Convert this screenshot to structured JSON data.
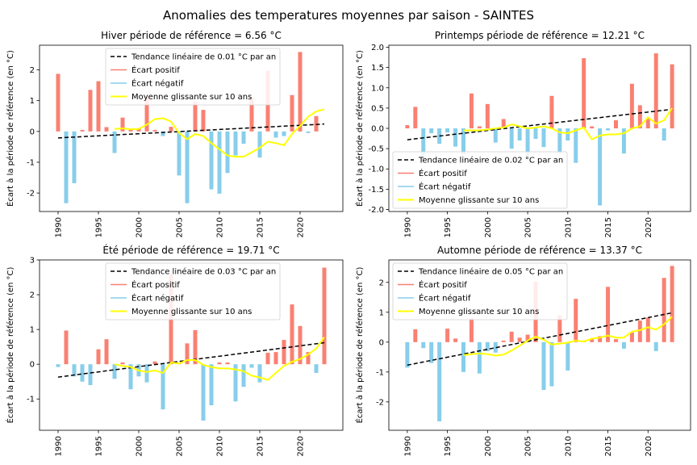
{
  "figure": {
    "title": "Anomalies des temperatures moyennes par saison - SAINTES"
  },
  "legend_labels": {
    "trend_prefix": "Tendance linéaire de",
    "trend_suffix": "°C par an",
    "positive": "Écart positif",
    "negative": "Écart négatif",
    "moving": "Moyenne glissante sur 10 ans"
  },
  "colors": {
    "positive": "#fa8072",
    "negative": "#87ceeb",
    "moving": "#ffff00",
    "trend": "#000000"
  },
  "chart_data": [
    {
      "type": "bar",
      "title": "Hiver période de référence = 6.56 °C",
      "ylabel": "Écart à la période de référence (en °C)",
      "trend_label": "Tendance linéaire de 0.01 °C par an",
      "legend_position": "top-center",
      "xlim": [
        1987.7,
        2025.3
      ],
      "ylim": [
        -2.6,
        2.8
      ],
      "xticks": [
        1990,
        1995,
        2000,
        2005,
        2010,
        2015,
        2020
      ],
      "yticks": [
        -2,
        -1,
        0,
        1,
        2
      ],
      "x": [
        1990,
        1991,
        1992,
        1993,
        1994,
        1995,
        1996,
        1997,
        1998,
        1999,
        2000,
        2001,
        2002,
        2003,
        2004,
        2005,
        2006,
        2007,
        2008,
        2009,
        2010,
        2011,
        2012,
        2013,
        2014,
        2015,
        2016,
        2017,
        2018,
        2019,
        2020,
        2021,
        2022,
        2023
      ],
      "values": [
        1.87,
        -2.33,
        -1.68,
        0.05,
        1.35,
        1.63,
        0.14,
        -0.7,
        0.45,
        0.05,
        0.1,
        1.15,
        0.05,
        -0.15,
        0.15,
        -1.43,
        -2.33,
        0.96,
        0.7,
        -1.88,
        -2.02,
        -1.35,
        -0.78,
        -0.4,
        1.1,
        -0.85,
        1.97,
        -0.2,
        -0.15,
        1.18,
        2.58,
        -0.05,
        0.5,
        null
      ],
      "trend": {
        "start": [
          1990,
          -0.21
        ],
        "end": [
          2023,
          0.24
        ]
      },
      "moving_average": {
        "x": [
          1997,
          1998,
          1999,
          2000,
          2001,
          2002,
          2003,
          2004,
          2005,
          2006,
          2007,
          2008,
          2009,
          2010,
          2011,
          2012,
          2013,
          2014,
          2015,
          2016,
          2017,
          2018,
          2019,
          2020,
          2021,
          2022,
          2023
        ],
        "values": [
          0.08,
          0.1,
          0.07,
          0.08,
          0.22,
          0.4,
          0.43,
          0.32,
          -0.05,
          -0.25,
          -0.08,
          -0.15,
          -0.38,
          -0.58,
          -0.78,
          -0.82,
          -0.82,
          -0.68,
          -0.53,
          -0.33,
          -0.38,
          -0.45,
          -0.08,
          0.18,
          0.48,
          0.65,
          0.72
        ]
      }
    },
    {
      "type": "bar",
      "title": "Printemps période de référence = 12.21 °C",
      "ylabel": "Écart à la période de référence (en °C)",
      "trend_label": "Tendance linéaire de 0.02 °C par an",
      "legend_position": "bottom-left",
      "xlim": [
        1987.7,
        2025.3
      ],
      "ylim": [
        -2.05,
        2.05
      ],
      "xticks": [
        1990,
        1995,
        2000,
        2005,
        2010,
        2015,
        2020
      ],
      "yticks": [
        -2.0,
        -1.5,
        -1.0,
        -0.5,
        0.0,
        0.5,
        1.0,
        1.5,
        2.0
      ],
      "x": [
        1990,
        1991,
        1992,
        1993,
        1994,
        1995,
        1996,
        1997,
        1998,
        1999,
        2000,
        2001,
        2002,
        2003,
        2004,
        2005,
        2006,
        2007,
        2008,
        2009,
        2010,
        2011,
        2012,
        2013,
        2014,
        2015,
        2016,
        2017,
        2018,
        2019,
        2020,
        2021,
        2022,
        2023
      ],
      "values": [
        0.08,
        0.53,
        -0.67,
        -0.12,
        -0.38,
        -0.1,
        -0.45,
        -0.65,
        0.86,
        0.05,
        0.6,
        -0.35,
        0.23,
        -0.5,
        -0.3,
        -0.68,
        -0.26,
        -0.46,
        0.8,
        -0.62,
        -0.3,
        -0.85,
        1.73,
        0.05,
        -1.9,
        -0.05,
        0.2,
        -0.62,
        1.1,
        0.57,
        0.25,
        1.85,
        -0.3,
        1.58
      ],
      "trend": {
        "start": [
          1990,
          -0.28
        ],
        "end": [
          2023,
          0.47
        ]
      },
      "moving_average": {
        "x": [
          1997,
          1998,
          1999,
          2000,
          2001,
          2002,
          2003,
          2004,
          2005,
          2006,
          2007,
          2008,
          2009,
          2010,
          2011,
          2012,
          2013,
          2014,
          2015,
          2016,
          2017,
          2018,
          2019,
          2020,
          2021,
          2022,
          2023
        ],
        "values": [
          -0.05,
          -0.05,
          -0.05,
          -0.03,
          0.0,
          0.02,
          0.1,
          0.05,
          0.0,
          0.02,
          0.05,
          0.0,
          -0.1,
          -0.12,
          -0.05,
          0.02,
          -0.27,
          -0.18,
          -0.15,
          -0.15,
          -0.12,
          0.0,
          0.05,
          0.27,
          0.12,
          0.2,
          0.5
        ]
      }
    },
    {
      "type": "bar",
      "title": "Été période de référence = 19.71 °C",
      "ylabel": "Écart à la période de référence (en °C)",
      "trend_label": "Tendance linéaire de 0.03 °C par an",
      "legend_position": "top-center",
      "xlim": [
        1987.7,
        2025.3
      ],
      "ylim": [
        -1.9,
        3.0
      ],
      "xticks": [
        1990,
        1995,
        2000,
        2005,
        2010,
        2015,
        2020
      ],
      "yticks": [
        -1,
        0,
        1,
        2,
        3
      ],
      "x": [
        1990,
        1991,
        1992,
        1993,
        1994,
        1995,
        1996,
        1997,
        1998,
        1999,
        2000,
        2001,
        2002,
        2003,
        2004,
        2005,
        2006,
        2007,
        2008,
        2009,
        2010,
        2011,
        2012,
        2013,
        2014,
        2015,
        2016,
        2017,
        2018,
        2019,
        2020,
        2021,
        2022,
        2023
      ],
      "values": [
        -0.08,
        0.97,
        -0.35,
        -0.5,
        -0.6,
        0.43,
        0.72,
        -0.42,
        0.05,
        -0.72,
        -0.35,
        -0.52,
        0.08,
        -1.3,
        2.58,
        0.02,
        0.6,
        0.98,
        -1.62,
        -1.18,
        0.05,
        0.05,
        -1.07,
        -0.65,
        -0.1,
        -0.52,
        0.33,
        0.35,
        0.7,
        1.72,
        1.1,
        0.35,
        -0.25,
        2.78
      ],
      "trend": {
        "start": [
          1990,
          -0.37
        ],
        "end": [
          2023,
          0.62
        ]
      },
      "moving_average": {
        "x": [
          1997,
          1998,
          1999,
          2000,
          2001,
          2002,
          2003,
          2004,
          2005,
          2006,
          2007,
          2008,
          2009,
          2010,
          2011,
          2012,
          2013,
          2014,
          2015,
          2016,
          2017,
          2018,
          2019,
          2020,
          2021,
          2022,
          2023
        ],
        "values": [
          0.0,
          -0.05,
          -0.08,
          -0.18,
          -0.22,
          -0.18,
          -0.25,
          0.05,
          0.02,
          0.12,
          0.12,
          -0.02,
          -0.08,
          -0.12,
          -0.12,
          -0.15,
          -0.2,
          -0.33,
          -0.38,
          -0.45,
          -0.25,
          -0.05,
          0.07,
          0.15,
          0.28,
          0.45,
          0.78
        ]
      }
    },
    {
      "type": "bar",
      "title": "Automne période de référence = 13.37 °C",
      "ylabel": "Écart à la période de référence (en °C)",
      "trend_label": "Tendance linéaire de 0.05 °C par an",
      "legend_position": "top-left",
      "xlim": [
        1987.7,
        2025.3
      ],
      "ylim": [
        -2.95,
        2.75
      ],
      "xticks": [
        1990,
        1995,
        2000,
        2005,
        2010,
        2015,
        2020
      ],
      "yticks": [
        -2,
        -1,
        0,
        1,
        2
      ],
      "x": [
        1990,
        1991,
        1992,
        1993,
        1994,
        1995,
        1996,
        1997,
        1998,
        1999,
        2000,
        2001,
        2002,
        2003,
        2004,
        2005,
        2006,
        2007,
        2008,
        2009,
        2010,
        2011,
        2012,
        2013,
        2014,
        2015,
        2016,
        2017,
        2018,
        2019,
        2020,
        2021,
        2022,
        2023
      ],
      "values": [
        -0.85,
        0.43,
        -0.2,
        -0.7,
        -2.65,
        0.45,
        0.12,
        -1.0,
        0.8,
        -1.05,
        -0.3,
        -0.35,
        0.05,
        0.35,
        0.15,
        0.25,
        2.02,
        -1.6,
        -1.48,
        0.9,
        -0.95,
        1.45,
        0.05,
        0.1,
        0.2,
        1.85,
        0.1,
        -0.22,
        0.32,
        0.72,
        0.82,
        -0.3,
        2.15,
        2.55
      ],
      "trend": {
        "start": [
          1990,
          -0.77
        ],
        "end": [
          2023,
          0.98
        ]
      },
      "moving_average": {
        "x": [
          1997,
          1998,
          1999,
          2000,
          2001,
          2002,
          2003,
          2004,
          2005,
          2006,
          2007,
          2008,
          2009,
          2010,
          2011,
          2012,
          2013,
          2014,
          2015,
          2016,
          2017,
          2018,
          2019,
          2020,
          2021,
          2022,
          2023
        ],
        "values": [
          -0.43,
          -0.4,
          -0.38,
          -0.4,
          -0.45,
          -0.42,
          -0.28,
          -0.12,
          0.05,
          0.18,
          0.08,
          -0.08,
          -0.05,
          -0.02,
          0.05,
          0.02,
          0.12,
          0.15,
          0.22,
          0.15,
          0.15,
          0.35,
          0.4,
          0.5,
          0.42,
          0.6,
          0.85
        ]
      }
    }
  ]
}
